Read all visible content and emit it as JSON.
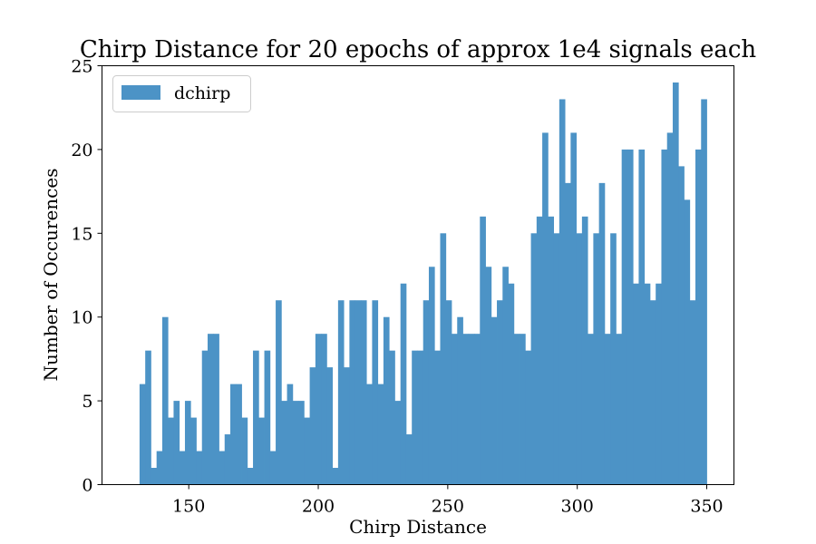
{
  "chart_data": {
    "type": "bar",
    "title": "Chirp Distance for 20 epochs of approx 1e4 signals each",
    "xlabel": "Chirp Distance",
    "ylabel": "Number of Occurences",
    "xlim": [
      116.5,
      360.5
    ],
    "ylim": [
      0,
      25
    ],
    "xticks": [
      150,
      200,
      250,
      300,
      350
    ],
    "yticks": [
      0,
      5,
      10,
      15,
      20,
      25
    ],
    "legend": {
      "position": "top-left"
    },
    "bin_start": 131.0,
    "bin_width": 2.19,
    "series": [
      {
        "name": "dchirp",
        "color": "#4c93c6",
        "values": [
          6,
          8,
          1,
          2,
          10,
          4,
          5,
          2,
          5,
          4,
          2,
          8,
          9,
          9,
          2,
          3,
          6,
          6,
          4,
          1,
          8,
          4,
          8,
          2,
          11,
          5,
          6,
          5,
          5,
          4,
          7,
          9,
          9,
          7,
          1,
          11,
          7,
          11,
          11,
          11,
          6,
          11,
          6,
          10,
          8,
          5,
          12,
          3,
          8,
          8,
          11,
          13,
          8,
          15,
          11,
          9,
          10,
          9,
          9,
          9,
          16,
          13,
          10,
          11,
          13,
          12,
          9,
          9,
          8,
          15,
          16,
          21,
          16,
          15,
          23,
          18,
          21,
          15,
          16,
          9,
          15,
          18,
          9,
          15,
          9,
          20,
          20,
          12,
          20,
          12,
          11,
          12,
          20,
          21,
          24,
          19,
          17,
          11,
          20,
          23
        ]
      }
    ]
  }
}
